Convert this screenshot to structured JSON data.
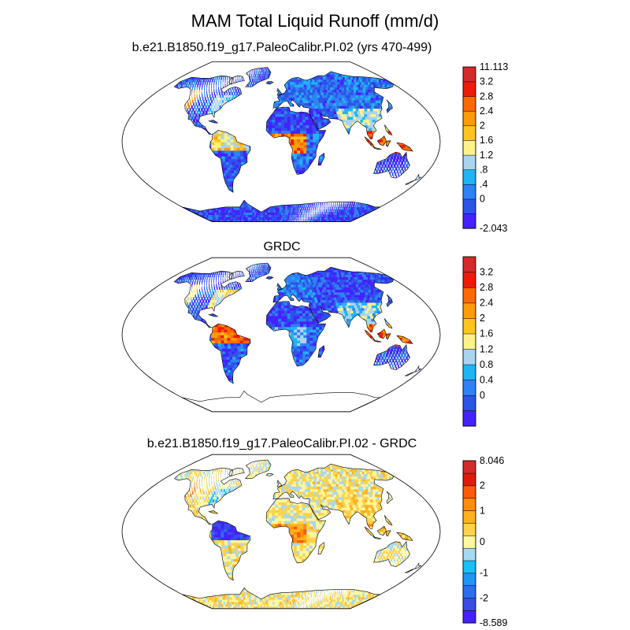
{
  "title": "MAM Total Liquid Runoff (mm/d)",
  "colors": {
    "ocean": "#ffffff",
    "outline": "#000000",
    "scale": [
      "#4422ff",
      "#2d54e8",
      "#2f82f5",
      "#1fb5f5",
      "#a8d4f0",
      "#fff28a",
      "#ffc41f",
      "#ff9a0a",
      "#ff6a00",
      "#ee1a0a",
      "#d42a2a"
    ],
    "diffscale": [
      "#4422ff",
      "#3a4be6",
      "#2c6ef0",
      "#1e96f5",
      "#18c0f7",
      "#a6d8f2",
      "#fff6a0",
      "#ffd24a",
      "#ffb21e",
      "#ff8c0a",
      "#ff5a0a",
      "#e01a0a",
      "#d42a2a"
    ]
  },
  "panels": [
    {
      "title": "b.e21.B1850.f19_g17.PaleoCalibr.PI.02 (yrs 470-499)",
      "kind": "model",
      "colorbar": [
        "11.113",
        "3.2",
        "2.8",
        "2.4",
        "2",
        "1.6",
        "1.2",
        ".8",
        ".4",
        "0",
        "-2.043"
      ]
    },
    {
      "title": "GRDC",
      "kind": "obs",
      "colorbar": [
        "3.2",
        "2.8",
        "2.4",
        "2",
        "1.6",
        "1.2",
        "0.8",
        "0.4",
        "0"
      ]
    },
    {
      "title": "b.e21.B1850.f19_g17.PaleoCalibr.PI.02 - GRDC",
      "kind": "diff",
      "colorbar": [
        "8.046",
        "2",
        "1",
        "0",
        "-1",
        "-2",
        "-8.589"
      ]
    }
  ]
}
